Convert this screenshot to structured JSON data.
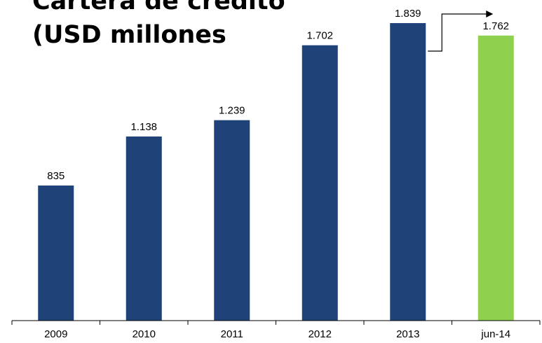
{
  "title_line1": "Cartera de credito",
  "title_line2": "(USD millones",
  "chart_data": {
    "type": "bar",
    "categories": [
      "2009",
      "2010",
      "2011",
      "2012",
      "2013",
      "jun-14"
    ],
    "values": [
      835,
      1138,
      1239,
      1702,
      1839,
      1762
    ],
    "value_labels": [
      "835",
      "1.138",
      "1.239",
      "1.702",
      "1.839",
      "1.762"
    ],
    "series_colors": [
      "#1f4378",
      "#1f4378",
      "#1f4378",
      "#1f4378",
      "#1f4378",
      "#8fd14f"
    ],
    "ylim": [
      0,
      1839
    ],
    "grid": false,
    "legend": "none"
  }
}
